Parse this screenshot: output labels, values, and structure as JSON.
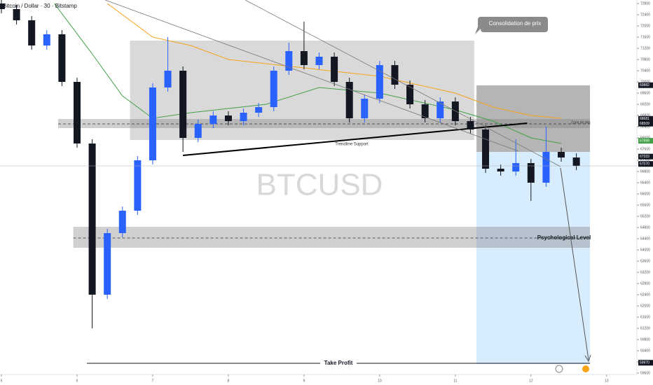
{
  "chart_data": {
    "type": "candlestick",
    "title": "Bitcoin / Dollar · 30 · Bitstamp",
    "watermark": "BTCUSD",
    "xlim": [
      5,
      13.4
    ],
    "xticks": [
      5,
      6,
      7,
      8,
      9,
      10,
      11,
      12,
      13
    ],
    "ylim": [
      59600,
      72800
    ],
    "yticks": [
      59600,
      60000,
      60400,
      60800,
      61200,
      61600,
      62000,
      62400,
      62800,
      63200,
      63600,
      64000,
      64400,
      64800,
      65200,
      65600,
      66000,
      66400,
      66800,
      67200,
      67600,
      68000,
      68400,
      68800,
      69200,
      69600,
      70000,
      70400,
      70800,
      71200,
      71600,
      72000,
      72400,
      72800
    ],
    "x": [
      5.0,
      5.2,
      5.4,
      5.6,
      5.8,
      6.0,
      6.2,
      6.4,
      6.6,
      6.8,
      7.0,
      7.2,
      7.4,
      7.6,
      7.8,
      8.0,
      8.2,
      8.4,
      8.6,
      8.8,
      9.0,
      9.2,
      9.4,
      9.6,
      9.8,
      10.0,
      10.2,
      10.4,
      10.6,
      10.8,
      11.0,
      11.2,
      11.4,
      11.6,
      11.8,
      12.0,
      12.2,
      12.4,
      12.6
    ],
    "open": [
      72800,
      72600,
      72200,
      71300,
      71700,
      70000,
      67800,
      62400,
      64600,
      65400,
      67200,
      69800,
      70400,
      68000,
      68500,
      68800,
      68600,
      68900,
      69100,
      70400,
      71100,
      70600,
      70900,
      70000,
      68700,
      69400,
      70600,
      69900,
      69200,
      68700,
      69300,
      68600,
      68300,
      66900,
      66800,
      67100,
      66400,
      67500,
      67300
    ],
    "high": [
      72950,
      72750,
      72350,
      71850,
      71850,
      70150,
      67950,
      64750,
      65550,
      67350,
      69950,
      71600,
      70550,
      68650,
      68950,
      68950,
      69050,
      69250,
      70550,
      71400,
      72150,
      71050,
      71050,
      70150,
      69550,
      70750,
      70750,
      70050,
      69350,
      69450,
      69450,
      68750,
      68450,
      67050,
      67950,
      67250,
      68400,
      67650,
      67450
    ],
    "low": [
      72450,
      72050,
      71150,
      71150,
      69850,
      67650,
      61200,
      62250,
      64450,
      65250,
      67050,
      69650,
      67500,
      67850,
      68350,
      68450,
      68450,
      68750,
      68950,
      70250,
      70450,
      70450,
      69850,
      68550,
      68550,
      69250,
      69750,
      69050,
      68550,
      68550,
      68450,
      68150,
      66750,
      66650,
      66650,
      65750,
      66250,
      67150,
      66850
    ],
    "close": [
      72600,
      72200,
      71300,
      71700,
      70000,
      67800,
      62400,
      64600,
      65400,
      67200,
      69800,
      70400,
      68000,
      68500,
      68800,
      68600,
      68900,
      69100,
      70400,
      71100,
      70600,
      70900,
      70000,
      68700,
      69400,
      70600,
      69900,
      69200,
      68700,
      69300,
      68600,
      68300,
      66900,
      66800,
      67100,
      66400,
      67500,
      67300,
      67000
    ],
    "up_color": "#2962ff",
    "down_color": "#131722",
    "overlays": [
      {
        "color": "#f7a21b",
        "x": [
          6.4,
          7.0,
          7.5,
          8.0,
          9.0,
          10.0,
          11.0,
          11.5,
          12.0,
          12.4
        ],
        "values": [
          72800,
          71600,
          71300,
          70800,
          70500,
          70200,
          69600,
          69100,
          68800,
          68700
        ]
      },
      {
        "color": "#43a047",
        "x": [
          5.7,
          6.2,
          6.6,
          7.0,
          7.5,
          8.5,
          9.2,
          10.0,
          11.0,
          11.5,
          12.0,
          12.4
        ],
        "values": [
          72800,
          71000,
          69500,
          68700,
          68900,
          69200,
          69800,
          69600,
          69000,
          68600,
          68000,
          67800
        ]
      }
    ],
    "zones": [
      {
        "x": [
          6.7,
          11.25
        ],
        "y": [
          67925,
          71475
        ],
        "fill": "rgba(120,120,120,0.28)"
      },
      {
        "x": [
          11.28,
          12.78
        ],
        "y": [
          67500,
          69875
        ],
        "fill": "rgba(90,90,90,0.45)"
      },
      {
        "x": [
          11.28,
          12.78
        ],
        "y": [
          59925,
          67500
        ],
        "fill": "rgba(33,150,243,0.18)"
      },
      {
        "x": [
          5.75,
          12.78
        ],
        "y": [
          68350,
          68675
        ],
        "fill": "rgba(120,120,120,0.35)"
      },
      {
        "x": [
          5.95,
          12.78
        ],
        "y": [
          64075,
          64825
        ],
        "fill": "rgba(120,120,120,0.35)"
      }
    ],
    "levels": [
      {
        "x": [
          5.75,
          12.78
        ],
        "value": 68500
      },
      {
        "x": [
          5.95,
          12.78
        ],
        "value": 64425
      }
    ],
    "trendline": {
      "x": [
        7.4,
        11.95
      ],
      "values": [
        67375,
        68525
      ]
    },
    "take_profit": {
      "x": [
        6.13,
        12.78
      ],
      "value": 59950,
      "label": "Take Profit"
    },
    "price_labels": [
      {
        "value": 69882,
        "color": "#131722"
      },
      {
        "value": 68681,
        "color": "#131722"
      },
      {
        "value": 68509,
        "color": "#131722"
      },
      {
        "value": 67898,
        "color": "#43a047"
      },
      {
        "value": 67333,
        "color": "#131722"
      },
      {
        "value": 67070,
        "color": "#131722"
      },
      {
        "value": 59970,
        "color": "#131722"
      }
    ],
    "annotations": {
      "consolidation": "Consolidation de prix",
      "trendline": "Trendline Support",
      "zone": "Zone de prix",
      "psychological": "Psychological Level"
    }
  }
}
